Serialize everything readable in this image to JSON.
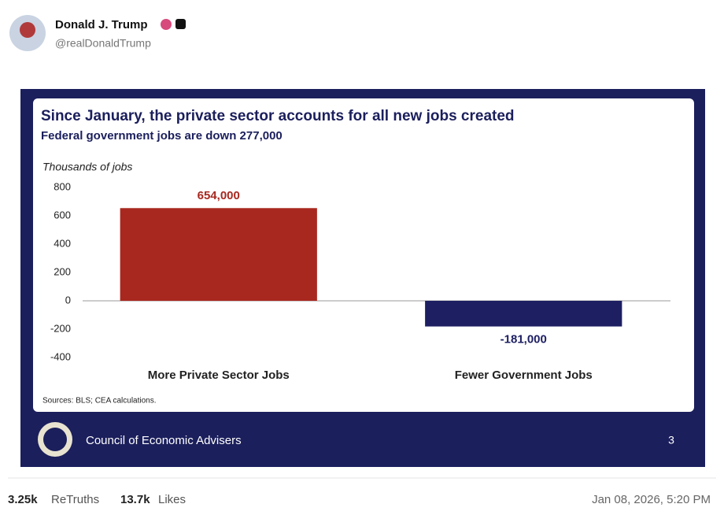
{
  "post": {
    "author": "Donald J. Trump",
    "handle": "@realDonaldTrump",
    "stats": [
      {
        "count": "3.25k",
        "label": "ReTruths"
      },
      {
        "count": "13.7k",
        "label": "Likes"
      }
    ],
    "timestamp": "Jan 08, 2026, 5:20 PM"
  },
  "slide": {
    "organization": "Council of Economic Advisers",
    "page_number": "3"
  },
  "chart_data": {
    "type": "bar",
    "title": "Since January, the private sector accounts for all new jobs created",
    "subtitle": "Federal government jobs are down 277,000",
    "y_label": "Thousands of jobs",
    "source": "Sources: BLS; CEA calculations.",
    "categories": [
      "More Private Sector Jobs",
      "Fewer Government Jobs"
    ],
    "values": [
      654,
      -181
    ],
    "value_labels": [
      "654,000",
      "-181,000"
    ],
    "colors": [
      "#a8281f",
      "#1d1f62"
    ],
    "ylim": [
      -400,
      800
    ],
    "yticks": [
      -400,
      -200,
      0,
      200,
      400,
      600,
      800
    ],
    "grid": false
  }
}
